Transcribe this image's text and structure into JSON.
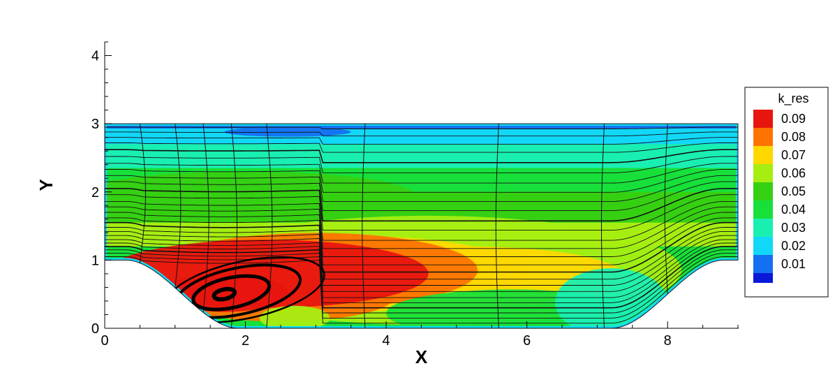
{
  "chart_data": {
    "type": "contour",
    "title": "",
    "xlabel": "X",
    "ylabel": "Y",
    "xlim": [
      0,
      9
    ],
    "ylim": [
      0,
      4.2
    ],
    "xticks": [
      0,
      2,
      4,
      6,
      8
    ],
    "yticks": [
      0,
      1,
      2,
      3,
      4
    ],
    "grid": false,
    "legend": {
      "title": "k_res",
      "placement": "right",
      "levels": [
        {
          "value": "0.09",
          "color": "#e8150f"
        },
        {
          "value": "0.08",
          "color": "#ff7400"
        },
        {
          "value": "0.07",
          "color": "#ffd800"
        },
        {
          "value": "0.06",
          "color": "#a6ee12"
        },
        {
          "value": "0.05",
          "color": "#36d012"
        },
        {
          "value": "0.04",
          "color": "#18e03a"
        },
        {
          "value": "0.03",
          "color": "#1aefb2"
        },
        {
          "value": "0.02",
          "color": "#12d8f8"
        },
        {
          "value": "0.01",
          "color": "#1470f0"
        }
      ],
      "bottom_color": "#0a18d8"
    },
    "geometry": {
      "top_wall_y": 3.0,
      "hill_crest_y": 1.0,
      "floor_y": 0.0,
      "left_hill_foot_x": 0.3,
      "left_hill_base_x": 1.9,
      "right_hill_base_x": 7.2,
      "right_hill_top_x": 8.8,
      "domain_end_x": 9.0
    },
    "recirculation": {
      "center": [
        1.7,
        0.5
      ],
      "region_x": [
        0.3,
        3.1
      ]
    }
  }
}
